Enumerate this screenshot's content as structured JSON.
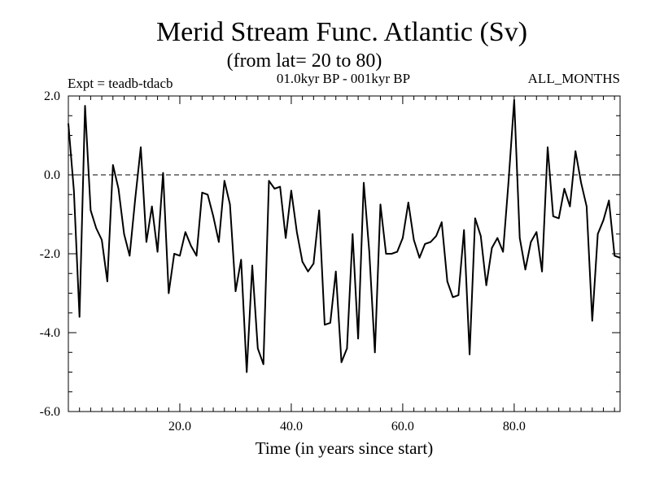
{
  "chart_data": {
    "type": "line",
    "title": "Merid Stream Func. Atlantic (Sv)",
    "subtitle": "(from lat= 20 to 80)",
    "experiment": "Expt = teadb-tdacb",
    "period": "01.0kyr BP - 001kyr BP",
    "months": "ALL_MONTHS",
    "xlabel": "Time (in years since start)",
    "ylabel": "",
    "xlim": [
      0,
      99
    ],
    "ylim": [
      -6,
      2
    ],
    "xticks": [
      20,
      40,
      60,
      80
    ],
    "xtick_labels": [
      "20.0",
      "40.0",
      "60.0",
      "80.0"
    ],
    "yticks": [
      2,
      0,
      -2,
      -4,
      -6
    ],
    "ytick_labels": [
      "2.0",
      "0.0",
      "-2.0",
      "-4.0",
      "-6.0"
    ],
    "reference_line": 0,
    "series": [
      {
        "name": "Merid Stream Func. Atlantic",
        "x": [
          0,
          1,
          2,
          3,
          4,
          5,
          6,
          7,
          8,
          9,
          10,
          11,
          12,
          13,
          14,
          15,
          16,
          17,
          18,
          19,
          20,
          21,
          22,
          23,
          24,
          25,
          26,
          27,
          28,
          29,
          30,
          31,
          32,
          33,
          34,
          35,
          36,
          37,
          38,
          39,
          40,
          41,
          42,
          43,
          44,
          45,
          46,
          47,
          48,
          49,
          50,
          51,
          52,
          53,
          54,
          55,
          56,
          57,
          58,
          59,
          60,
          61,
          62,
          63,
          64,
          65,
          66,
          67,
          68,
          69,
          70,
          71,
          72,
          73,
          74,
          75,
          76,
          77,
          78,
          79,
          80,
          81,
          82,
          83,
          84,
          85,
          86,
          87,
          88,
          89,
          90,
          91,
          92,
          93,
          94,
          95,
          96,
          97,
          98,
          99
        ],
        "values": [
          1.3,
          -0.4,
          -3.6,
          1.75,
          -0.9,
          -1.35,
          -1.65,
          -2.7,
          0.25,
          -0.35,
          -1.5,
          -2.05,
          -0.6,
          0.7,
          -1.7,
          -0.8,
          -1.95,
          0.05,
          -3.0,
          -2.0,
          -2.05,
          -1.45,
          -1.8,
          -2.05,
          -0.45,
          -0.5,
          -1.05,
          -1.7,
          -0.15,
          -0.75,
          -2.95,
          -2.15,
          -5.0,
          -2.3,
          -4.4,
          -4.8,
          -0.15,
          -0.35,
          -0.3,
          -1.6,
          -0.4,
          -1.45,
          -2.2,
          -2.45,
          -2.25,
          -0.9,
          -3.8,
          -3.75,
          -2.45,
          -4.75,
          -4.4,
          -1.5,
          -4.15,
          -0.2,
          -1.95,
          -4.5,
          -0.75,
          -2.0,
          -2.0,
          -1.95,
          -1.6,
          -0.7,
          -1.65,
          -2.1,
          -1.75,
          -1.7,
          -1.55,
          -1.2,
          -2.7,
          -3.1,
          -3.05,
          -1.4,
          -4.55,
          -1.1,
          -1.55,
          -2.8,
          -1.85,
          -1.6,
          -1.95,
          -0.15,
          1.9,
          -1.6,
          -2.4,
          -1.7,
          -1.45,
          -2.45,
          0.7,
          -1.05,
          -1.1,
          -0.35,
          -0.8,
          0.6,
          -0.2,
          -0.8,
          -3.7,
          -1.5,
          -1.15,
          -0.65,
          -2.05,
          -2.1
        ]
      }
    ]
  }
}
